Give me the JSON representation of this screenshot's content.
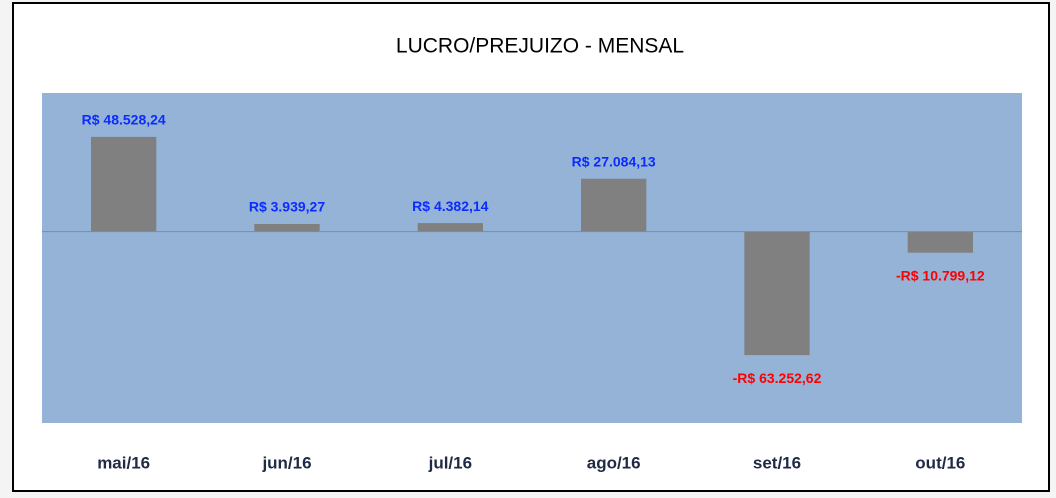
{
  "chart_data": {
    "type": "bar",
    "title": "LUCRO/PREJUIZO - MENSAL",
    "categories": [
      "mai/16",
      "jun/16",
      "jul/16",
      "ago/16",
      "set/16",
      "out/16"
    ],
    "values": [
      48528.24,
      3939.27,
      4382.14,
      27084.13,
      -63252.62,
      -10799.12
    ],
    "value_labels": [
      "R$ 48.528,24",
      "R$ 3.939,27",
      "R$ 4.382,14",
      "R$ 27.084,13",
      "-R$ 63.252,62",
      "-R$ 10.799,12"
    ],
    "color": "#808080",
    "label_colors": {
      "positive": "#0a2cff",
      "negative": "#ff0000"
    },
    "plot_color": "#95b3d7",
    "ylim": [
      -98000,
      71000
    ]
  }
}
